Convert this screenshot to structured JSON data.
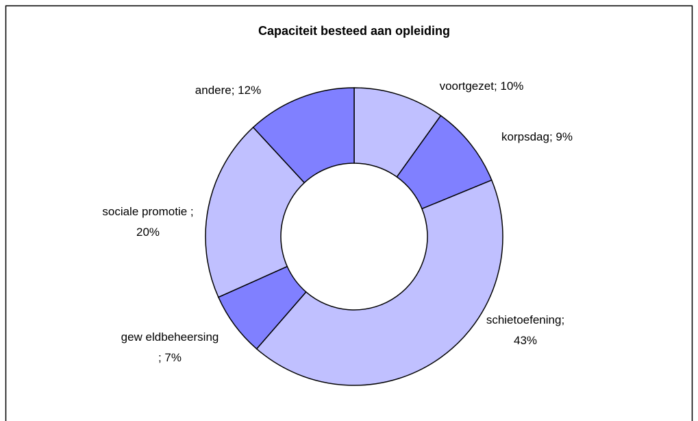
{
  "chart_data": {
    "type": "donut",
    "title": "Capaciteit besteed aan opleiding",
    "values": [
      10,
      9,
      43,
      7,
      20,
      12
    ],
    "value_labels": [
      "voortgezet; 10%",
      "korpsdag; 9%",
      "schietoefening;\n43%",
      "gew eldbeheersing\n; 7%",
      "sociale promotie ;\n20%",
      "andere; 12%"
    ],
    "colors": [
      "#c0c0ff",
      "#8080ff",
      "#c0c0ff",
      "#8080ff",
      "#c0c0ff",
      "#8080ff"
    ]
  }
}
